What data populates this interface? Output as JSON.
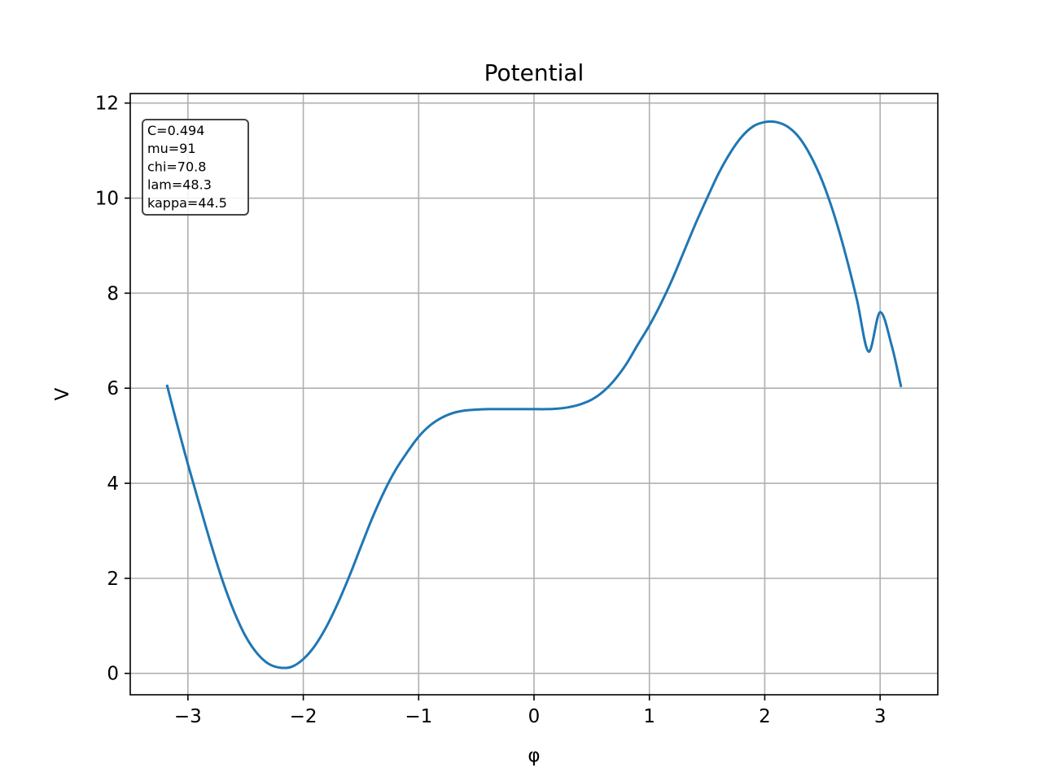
{
  "chart_data": {
    "type": "line",
    "title": "Potential",
    "xlabel": "φ",
    "ylabel": "V",
    "xlim": [
      -3.5,
      3.5
    ],
    "ylim": [
      -0.45,
      12.2
    ],
    "xticks": [
      -3,
      -2,
      -1,
      0,
      1,
      2,
      3
    ],
    "xtick_labels": [
      "−3",
      "−2",
      "−1",
      "0",
      "1",
      "2",
      "3"
    ],
    "yticks": [
      0,
      2,
      4,
      6,
      8,
      10,
      12
    ],
    "ytick_labels": [
      "0",
      "2",
      "4",
      "6",
      "8",
      "10",
      "12"
    ],
    "grid": true,
    "series": [
      {
        "color": "#1f77b4",
        "x": [
          -3.18,
          -3.1,
          -3.0,
          -2.9,
          -2.8,
          -2.7,
          -2.6,
          -2.5,
          -2.4,
          -2.3,
          -2.2,
          -2.1,
          -2.0,
          -1.9,
          -1.8,
          -1.7,
          -1.6,
          -1.5,
          -1.4,
          -1.3,
          -1.2,
          -1.1,
          -1.0,
          -0.9,
          -0.8,
          -0.7,
          -0.6,
          -0.5,
          -0.4,
          -0.3,
          -0.2,
          -0.1,
          0.0,
          0.1,
          0.2,
          0.3,
          0.4,
          0.5,
          0.6,
          0.7,
          0.8,
          0.9,
          1.0,
          1.1,
          1.2,
          1.3,
          1.4,
          1.5,
          1.6,
          1.7,
          1.8,
          1.9,
          2.0,
          2.1,
          2.2,
          2.3,
          2.4,
          2.5,
          2.6,
          2.7,
          2.8,
          2.9,
          3.0,
          3.1,
          3.18
        ],
        "y": [
          6.05,
          5.3,
          4.4,
          3.55,
          2.72,
          1.95,
          1.3,
          0.78,
          0.42,
          0.2,
          0.12,
          0.14,
          0.3,
          0.58,
          0.98,
          1.48,
          2.05,
          2.67,
          3.28,
          3.82,
          4.28,
          4.65,
          4.98,
          5.22,
          5.38,
          5.48,
          5.53,
          5.55,
          5.56,
          5.56,
          5.56,
          5.56,
          5.56,
          5.56,
          5.57,
          5.6,
          5.66,
          5.76,
          5.93,
          6.18,
          6.51,
          6.92,
          7.32,
          7.78,
          8.3,
          8.88,
          9.46,
          10.0,
          10.52,
          10.95,
          11.29,
          11.51,
          11.6,
          11.6,
          11.5,
          11.27,
          10.88,
          10.35,
          9.66,
          8.82,
          7.85,
          6.77,
          7.6,
          6.9,
          6.05
        ]
      }
    ],
    "annotation": {
      "lines": [
        "C=0.494",
        "mu=91",
        "chi=70.8",
        "lam=48.3",
        "kappa=44.5"
      ],
      "position": "top-left"
    }
  }
}
